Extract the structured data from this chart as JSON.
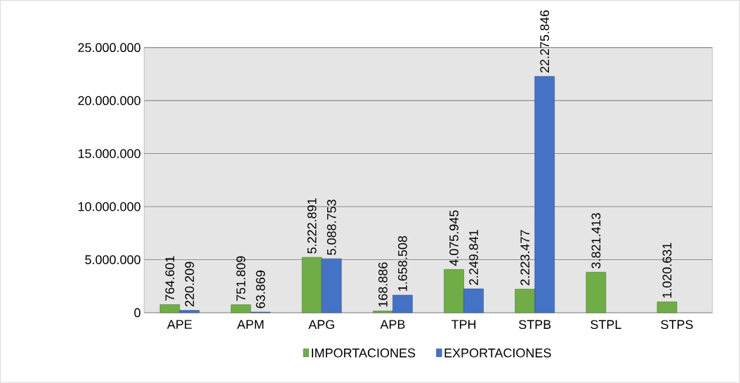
{
  "chart_data": {
    "type": "bar",
    "categories": [
      "APE",
      "APM",
      "APG",
      "APB",
      "TPH",
      "STPB",
      "STPL",
      "STPS"
    ],
    "series": [
      {
        "name": "IMPORTACIONES",
        "color": "#70ad47",
        "values": [
          764601,
          751809,
          5222891,
          168886,
          4075945,
          2223477,
          3821413,
          1020631
        ],
        "value_labels": [
          "764.601",
          "751.809",
          "5.222.891",
          "168.886",
          "4.075.945",
          "2.223.477",
          "3.821.413",
          "1.020.631"
        ]
      },
      {
        "name": "EXPORTACIONES",
        "color": "#4472c4",
        "values": [
          220209,
          63869,
          5088753,
          1658508,
          2249841,
          22275846,
          null,
          null
        ],
        "value_labels": [
          "220.209",
          "63.869",
          "5.088.753",
          "1.658.508",
          "2.249.841",
          "22.275.846",
          null,
          null
        ]
      }
    ],
    "ylim": [
      0,
      25000000
    ],
    "yticks": [
      {
        "value": 0,
        "label": "0"
      },
      {
        "value": 5000000,
        "label": "5.000.000"
      },
      {
        "value": 10000000,
        "label": "10.000.000"
      },
      {
        "value": 15000000,
        "label": "15.000.000"
      },
      {
        "value": 20000000,
        "label": "20.000.000"
      },
      {
        "value": 25000000,
        "label": "25.000.000"
      }
    ],
    "grid": "y",
    "legend": "bottom"
  }
}
